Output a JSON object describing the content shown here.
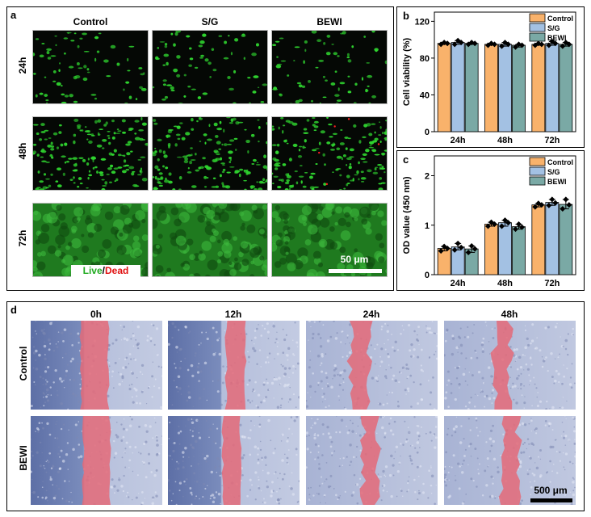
{
  "panel_a": {
    "label": "a",
    "columns": [
      "Control",
      "S/G",
      "BEWI"
    ],
    "rows": [
      "24h",
      "48h",
      "72h"
    ],
    "legend_live": "Live",
    "legend_slash": "/",
    "legend_dead": "Dead",
    "scale_bar": "50 μm",
    "live_color": "#2fd42f",
    "dead_color": "#ff2020"
  },
  "panel_d": {
    "label": "d",
    "columns": [
      "0h",
      "12h",
      "24h",
      "48h"
    ],
    "rows": [
      "Control",
      "BEWI"
    ],
    "scale_bar": "500 μm",
    "wound_color": "#e46a78"
  },
  "chart_data": [
    {
      "id": "b",
      "label": "b",
      "type": "bar",
      "categories": [
        "24h",
        "48h",
        "72h"
      ],
      "ylabel": "Cell viability (%)",
      "ylim": [
        0,
        130
      ],
      "yticks": [
        0,
        40,
        80,
        120
      ],
      "legend_position": "top-right",
      "series": [
        {
          "name": "Control",
          "color": "#f9b26b",
          "values": [
            96,
            95,
            95
          ],
          "points": [
            [
              95,
              97,
              96
            ],
            [
              94,
              96,
              95
            ],
            [
              94,
              96,
              95
            ]
          ]
        },
        {
          "name": "S/G",
          "color": "#a3c1e3",
          "values": [
            97,
            95,
            96
          ],
          "points": [
            [
              95,
              99,
              97
            ],
            [
              93,
              97,
              95
            ],
            [
              94,
              98,
              96
            ]
          ]
        },
        {
          "name": "BEWI",
          "color": "#7aa9a5",
          "values": [
            96,
            94,
            95
          ],
          "points": [
            [
              95,
              97,
              96
            ],
            [
              92,
              95,
              94
            ],
            [
              93,
              97,
              95
            ]
          ]
        }
      ]
    },
    {
      "id": "c",
      "label": "c",
      "type": "bar",
      "categories": [
        "24h",
        "48h",
        "72h"
      ],
      "ylabel": "OD value (450 nm)",
      "ylim": [
        0,
        2.4
      ],
      "yticks": [
        0,
        1,
        2
      ],
      "legend_position": "top-right",
      "series": [
        {
          "name": "Control",
          "color": "#f9b26b",
          "values": [
            0.53,
            1.02,
            1.41
          ],
          "points": [
            [
              0.48,
              0.57,
              0.53
            ],
            [
              0.98,
              1.06,
              1.02
            ],
            [
              1.37,
              1.44,
              1.41
            ]
          ]
        },
        {
          "name": "S/G",
          "color": "#a3c1e3",
          "values": [
            0.56,
            1.05,
            1.46
          ],
          "points": [
            [
              0.5,
              0.63,
              0.55
            ],
            [
              0.98,
              1.1,
              1.05
            ],
            [
              1.4,
              1.52,
              1.45
            ]
          ]
        },
        {
          "name": "BEWI",
          "color": "#7aa9a5",
          "values": [
            0.52,
            0.97,
            1.42
          ],
          "points": [
            [
              0.45,
              0.58,
              0.52
            ],
            [
              0.92,
              1.02,
              0.96
            ],
            [
              1.33,
              1.52,
              1.41
            ]
          ]
        }
      ]
    }
  ]
}
